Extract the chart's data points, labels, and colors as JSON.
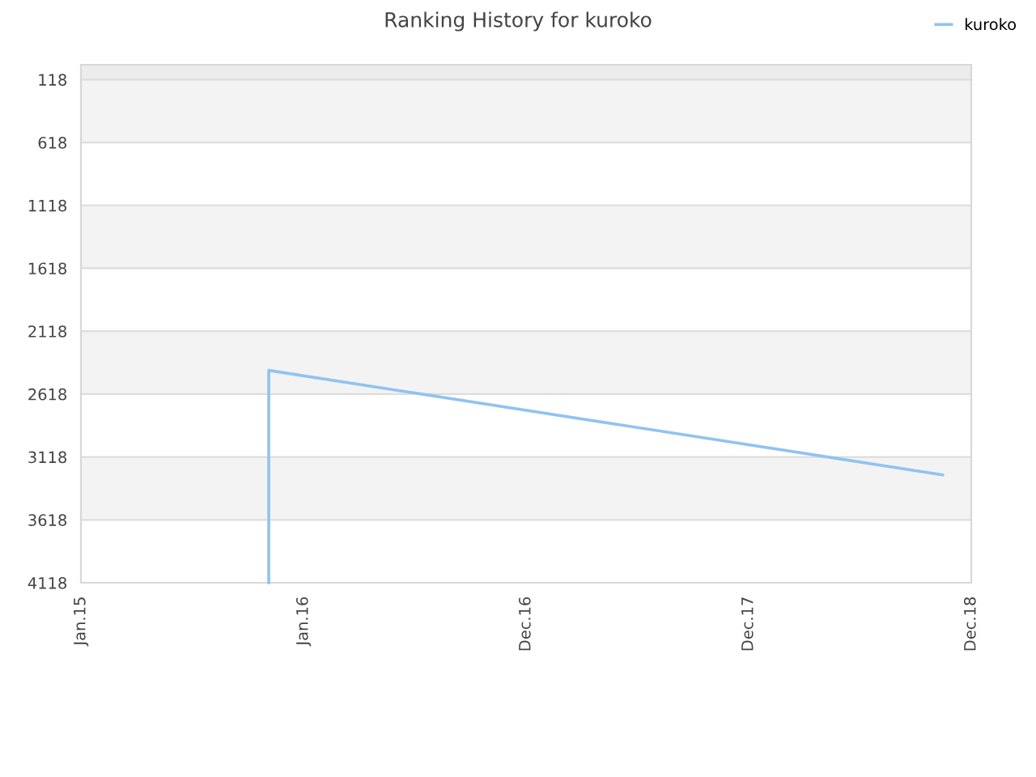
{
  "chart_data": {
    "type": "line",
    "title": "Ranking History for kuroko",
    "x": [
      "2015-11-05",
      "2015-11-05",
      "2018-11-14"
    ],
    "series": [
      {
        "name": "kuroko",
        "color": "#90c3f0",
        "values": [
          4118,
          2430,
          3260
        ]
      }
    ],
    "xlim": [
      "2015-01-01",
      "2018-12-31"
    ],
    "xticks": [
      {
        "value": "2015-01-01",
        "label": "Jan.15"
      },
      {
        "value": "2016-01-01",
        "label": "Jan.16"
      },
      {
        "value": "2016-12-31",
        "label": "Dec.16"
      },
      {
        "value": "2017-12-31",
        "label": "Dec.17"
      },
      {
        "value": "2018-12-31",
        "label": "Dec.18"
      }
    ],
    "ylim": [
      4118,
      0
    ],
    "yticks": [
      118,
      618,
      1118,
      1618,
      2118,
      2618,
      3118,
      3618,
      4118
    ],
    "bands": [
      {
        "axis": "y",
        "from": 0,
        "to": 118,
        "color": "#ececec"
      },
      {
        "axis": "y",
        "from": 118,
        "to": 618,
        "color": "#f3f3f3"
      },
      {
        "axis": "y",
        "from": 1118,
        "to": 1618,
        "color": "#f3f3f3"
      },
      {
        "axis": "y",
        "from": 2118,
        "to": 2618,
        "color": "#f3f3f3"
      },
      {
        "axis": "y",
        "from": 3118,
        "to": 3618,
        "color": "#f3f3f3"
      }
    ],
    "grid": "y",
    "legend": "top right",
    "marker": "none",
    "line_style": "solid"
  }
}
